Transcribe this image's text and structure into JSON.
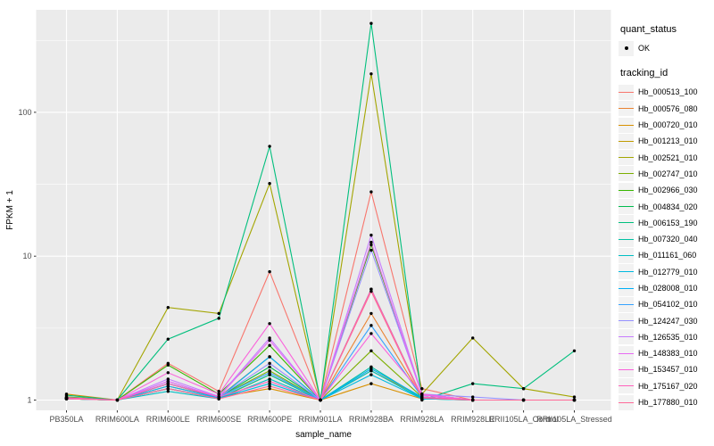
{
  "figure": {
    "x_axis_title": "sample_name",
    "y_axis_title": "FPKM + 1",
    "legend": {
      "quant_status_title": "quant_status",
      "quant_status_items": [
        {
          "label": "OK",
          "marker": "black-point"
        }
      ],
      "tracking_title": "tracking_id"
    }
  },
  "chart_data": {
    "type": "line",
    "xlabel": "sample_name",
    "ylabel": "FPKM + 1",
    "yscale": "log10",
    "yticks": [
      1,
      10,
      100
    ],
    "ylim": [
      0.85,
      520
    ],
    "grid": true,
    "legend_position": "right",
    "panel_background": "#EBEBEB",
    "grid_color": "#FFFFFF",
    "axis_text_color": "#4D4D4D",
    "point_color": "#000000",
    "x_categories": [
      "PB350LA",
      "RRIM600LA",
      "RRIM600LE",
      "RRIM600SE",
      "RRIM600PE",
      "RRIM901LA",
      "RRIM928BA",
      "RRIM928LA",
      "RRIM928LE",
      "RRII105LA_Control",
      "RRII105LA_Stressed"
    ],
    "series": [
      {
        "name": "Hb_000513_100",
        "color": "#F8766D",
        "values": [
          1.05,
          1.0,
          1.8,
          1.15,
          7.8,
          1.0,
          28,
          1.2,
          1.0,
          1.0,
          1.0
        ]
      },
      {
        "name": "Hb_000576_080",
        "color": "#EA8331",
        "values": [
          1.02,
          1.0,
          1.25,
          1.05,
          2.0,
          1.0,
          4.0,
          1.05,
          1.0,
          1.0,
          1.0
        ]
      },
      {
        "name": "Hb_000720_010",
        "color": "#D89000",
        "values": [
          1.1,
          1.0,
          1.3,
          1.05,
          1.2,
          1.0,
          1.3,
          1.02,
          1.0,
          1.0,
          1.0
        ]
      },
      {
        "name": "Hb_001213_010",
        "color": "#C09B00",
        "values": [
          1.02,
          1.0,
          1.2,
          1.02,
          1.5,
          1.0,
          1.6,
          1.05,
          1.0,
          1.0,
          1.0
        ]
      },
      {
        "name": "Hb_002521_010",
        "color": "#A3A500",
        "values": [
          1.02,
          1.0,
          4.4,
          4.0,
          32,
          1.0,
          185,
          1.1,
          2.7,
          1.2,
          1.05
        ]
      },
      {
        "name": "Hb_002747_010",
        "color": "#7CAE00",
        "values": [
          1.02,
          1.0,
          1.3,
          1.05,
          1.6,
          1.0,
          2.2,
          1.05,
          1.0,
          1.0,
          1.0
        ]
      },
      {
        "name": "Hb_002966_030",
        "color": "#39B600",
        "values": [
          1.05,
          1.0,
          1.75,
          1.1,
          2.4,
          1.0,
          12,
          1.1,
          1.0,
          1.0,
          1.0
        ]
      },
      {
        "name": "Hb_004834_020",
        "color": "#00BB4E",
        "values": [
          1.03,
          1.0,
          1.3,
          1.05,
          1.7,
          1.0,
          5.9,
          1.05,
          1.0,
          1.0,
          1.0
        ]
      },
      {
        "name": "Hb_006153_190",
        "color": "#00BF7D",
        "values": [
          1.08,
          1.0,
          2.65,
          3.7,
          58,
          1.0,
          415,
          1.0,
          1.3,
          1.2,
          2.2
        ]
      },
      {
        "name": "Hb_007320_040",
        "color": "#00C1A3",
        "values": [
          1.02,
          1.0,
          1.2,
          1.03,
          1.5,
          1.0,
          1.7,
          1.03,
          1.0,
          1.0,
          1.0
        ]
      },
      {
        "name": "Hb_011161_060",
        "color": "#00BFC4",
        "values": [
          1.02,
          1.0,
          1.15,
          1.02,
          1.4,
          1.0,
          1.6,
          1.02,
          1.0,
          1.0,
          1.0
        ]
      },
      {
        "name": "Hb_012779_010",
        "color": "#00BAE0",
        "values": [
          1.02,
          1.0,
          1.2,
          1.03,
          1.3,
          1.0,
          1.5,
          1.02,
          1.0,
          1.0,
          1.0
        ]
      },
      {
        "name": "Hb_028008_010",
        "color": "#00B0F6",
        "values": [
          1.03,
          1.0,
          1.25,
          1.04,
          2.0,
          1.0,
          1.65,
          1.05,
          1.0,
          1.0,
          1.0
        ]
      },
      {
        "name": "Hb_054102_010",
        "color": "#35A2FF",
        "values": [
          1.03,
          1.0,
          1.3,
          1.05,
          1.55,
          1.0,
          3.3,
          1.05,
          1.0,
          1.0,
          1.0
        ]
      },
      {
        "name": "Hb_124247_030",
        "color": "#9590FF",
        "values": [
          1.02,
          1.0,
          1.35,
          1.05,
          1.8,
          1.0,
          11,
          1.1,
          1.05,
          1.0,
          1.0
        ]
      },
      {
        "name": "Hb_126535_010",
        "color": "#C77CFF",
        "values": [
          1.03,
          1.0,
          1.4,
          1.06,
          2.7,
          1.0,
          14,
          1.1,
          1.0,
          1.0,
          1.0
        ]
      },
      {
        "name": "Hb_148383_010",
        "color": "#E76BF3",
        "values": [
          1.03,
          1.0,
          1.35,
          1.05,
          2.6,
          1.0,
          12.5,
          1.08,
          1.0,
          1.0,
          1.0
        ]
      },
      {
        "name": "Hb_153457_010",
        "color": "#FA62DB",
        "values": [
          1.04,
          1.0,
          1.55,
          1.1,
          3.4,
          1.0,
          2.9,
          1.1,
          1.0,
          1.0,
          1.0
        ]
      },
      {
        "name": "Hb_175167_020",
        "color": "#FF62BC",
        "values": [
          1.03,
          1.0,
          1.3,
          1.05,
          1.35,
          1.0,
          5.9,
          1.05,
          1.0,
          1.0,
          1.0
        ]
      },
      {
        "name": "Hb_177880_010",
        "color": "#FF6A98",
        "values": [
          1.02,
          1.0,
          1.2,
          1.02,
          1.25,
          1.0,
          5.7,
          1.03,
          1.0,
          1.0,
          1.0
        ]
      }
    ]
  }
}
